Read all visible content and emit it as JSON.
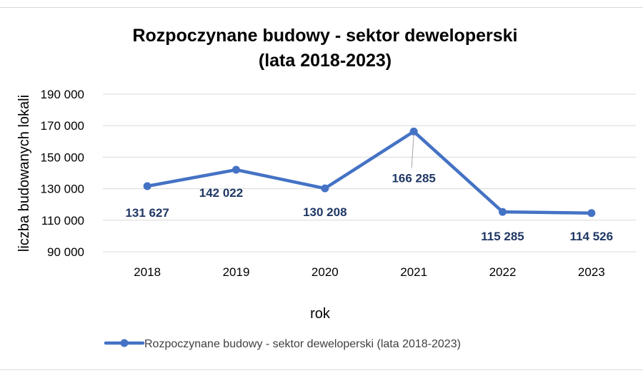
{
  "chart_data": {
    "type": "line",
    "title_lines": [
      "Rozpoczynane budowy - sektor deweloperski",
      "(lata 2018-2023)"
    ],
    "xlabel": "rok",
    "ylabel": "liczba budowanych lokali",
    "categories": [
      "2018",
      "2019",
      "2020",
      "2021",
      "2022",
      "2023"
    ],
    "series": [
      {
        "name": "Rozpoczynane budowy - sektor deweloperski (lata 2018-2023)",
        "values": [
          131627,
          142022,
          130208,
          166285,
          115285,
          114526
        ],
        "data_labels": [
          "131 627",
          "142 022",
          "130 208",
          "166 285",
          "115 285",
          "114 526"
        ],
        "color": "#4472c4",
        "label_color": "#203864"
      }
    ],
    "ylim": [
      90000,
      190000
    ],
    "yticks": [
      90000,
      110000,
      130000,
      150000,
      170000,
      190000
    ],
    "ytick_labels": [
      "90 000",
      "110 000",
      "130 000",
      "150 000",
      "170 000",
      "190 000"
    ],
    "grid": true,
    "legend_position": "bottom"
  }
}
